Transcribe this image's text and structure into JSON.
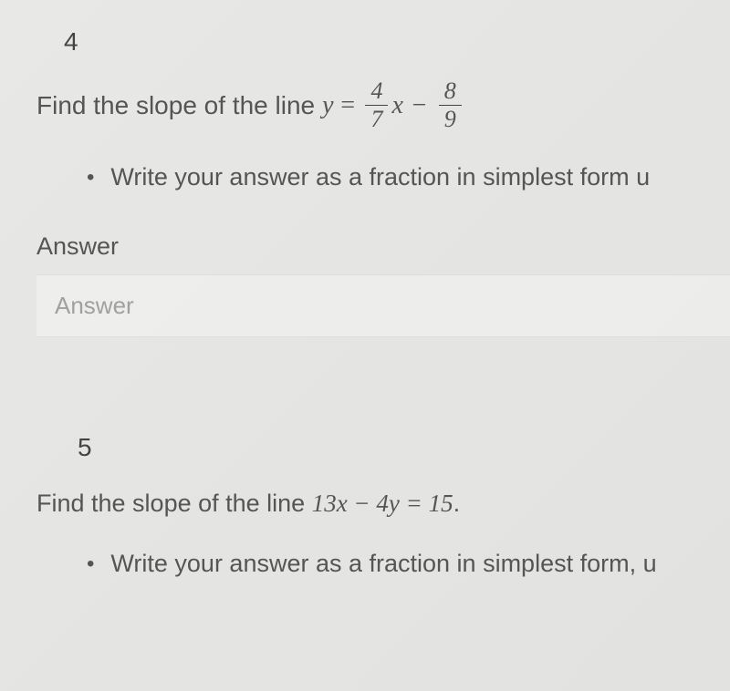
{
  "question4": {
    "number": "4",
    "prompt": "Find the slope of the line ",
    "equation": {
      "lhs_var": "y",
      "equals": "=",
      "frac1_num": "4",
      "frac1_den": "7",
      "x_var": "x",
      "minus": "−",
      "frac2_num": "8",
      "frac2_den": "9"
    },
    "bullet": "•",
    "instruction": "Write your answer as a fraction in simplest form u",
    "answer_label": "Answer",
    "answer_placeholder": "Answer"
  },
  "question5": {
    "number": "5",
    "prompt_before": "Find the slope of the line ",
    "equation_text": "13x − 4y = 15",
    "prompt_after": ".",
    "bullet": "•",
    "instruction": "Write your answer as a fraction in simplest form, u"
  }
}
